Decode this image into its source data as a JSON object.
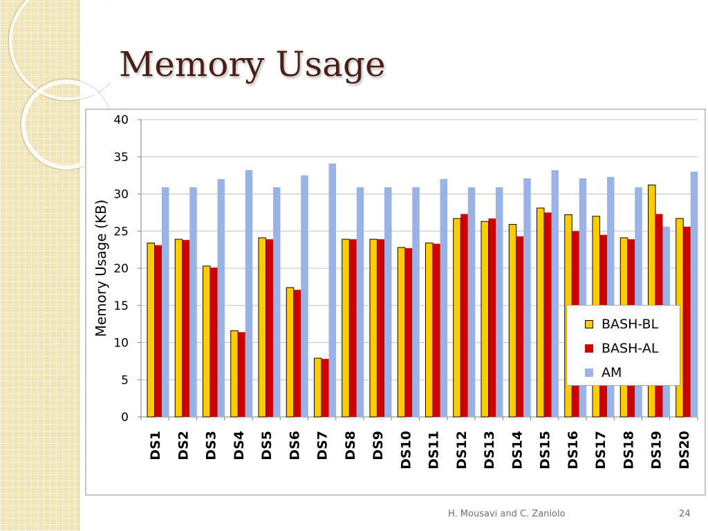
{
  "slide": {
    "title": "Memory Usage",
    "author": "H. Mousavi and C. Zaniolo",
    "page_number": "24"
  },
  "colors": {
    "bash_bl": "#ffcc00",
    "bash_al": "#cc0000",
    "am": "#99b3e6",
    "accent_title": "#4a1f16"
  },
  "chart_data": {
    "type": "bar",
    "title": "",
    "xlabel": "",
    "ylabel": "Memory Usage (KB)",
    "ylim": [
      0,
      40
    ],
    "yticks": [
      0,
      5,
      10,
      15,
      20,
      25,
      30,
      35,
      40
    ],
    "grid": true,
    "legend_position": "bottom-right",
    "categories": [
      "DS1",
      "DS2",
      "DS3",
      "DS4",
      "DS5",
      "DS6",
      "DS7",
      "DS8",
      "DS9",
      "DS10",
      "DS11",
      "DS12",
      "DS13",
      "DS14",
      "DS15",
      "DS16",
      "DS17",
      "DS18",
      "DS19",
      "DS20"
    ],
    "series": [
      {
        "name": "BASH-BL",
        "values": [
          23.4,
          23.9,
          20.3,
          11.6,
          24.1,
          17.4,
          7.9,
          23.9,
          23.9,
          22.8,
          23.4,
          26.7,
          26.3,
          25.9,
          28.1,
          27.2,
          27.0,
          24.1,
          31.2,
          26.7
        ]
      },
      {
        "name": "BASH-AL",
        "values": [
          23.1,
          23.8,
          20.1,
          11.4,
          23.9,
          17.1,
          7.8,
          23.9,
          23.9,
          22.7,
          23.3,
          27.3,
          26.7,
          24.3,
          27.5,
          25.0,
          24.5,
          23.9,
          27.3,
          25.6
        ]
      },
      {
        "name": "AM",
        "values": [
          30.9,
          30.9,
          32.0,
          33.2,
          30.9,
          32.5,
          34.1,
          30.9,
          30.9,
          30.9,
          32.0,
          30.9,
          30.9,
          32.1,
          33.2,
          32.1,
          32.3,
          30.9,
          25.6,
          33.0
        ]
      }
    ]
  }
}
